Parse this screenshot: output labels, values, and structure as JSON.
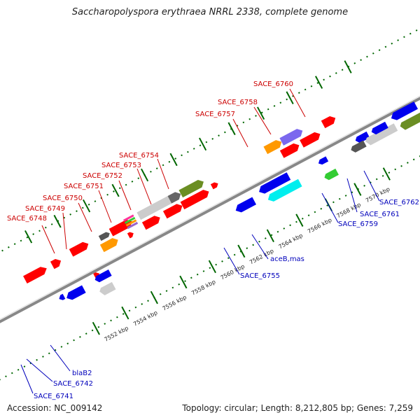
{
  "title": "Saccharopolyspora erythraea NRRL 2338, complete genome",
  "accession_line": "Accession: NC_009142",
  "topology_line": "Topology: circular; Length: 8,212,805 bp; Genes: 7,259",
  "tick_labels": [
    "7552 kbp",
    "7554 kbp",
    "7556 kbp",
    "7558 kbp",
    "7560 kbp",
    "7562 kbp",
    "7564 kbp",
    "7566 kbp",
    "7568 kbp",
    "7570 kbp"
  ],
  "upper_genes": [
    "SACE_6748",
    "SACE_6749",
    "SACE_6750",
    "SACE_6751",
    "SACE_6752",
    "SACE_6753",
    "SACE_6754",
    "SACE_6757",
    "SACE_6758",
    "SACE_6760"
  ],
  "lower_genes": [
    "SACE_6741",
    "SACE_6742",
    "blaB2",
    "SACE_6755",
    "aceB,mas",
    "SACE_6759",
    "SACE_6761",
    "SACE_6762"
  ],
  "colors": {
    "red": "#ff0000",
    "blue": "#0000ee",
    "gray": "#c8c8c8",
    "dark_gray": "#666666",
    "olive": "#6b8e23",
    "orange": "#ff9900",
    "cyan": "#00eeee",
    "green": "#33cc33",
    "purple": "#7b68ee",
    "tick_green": "#006600",
    "backbone": "#888888"
  }
}
